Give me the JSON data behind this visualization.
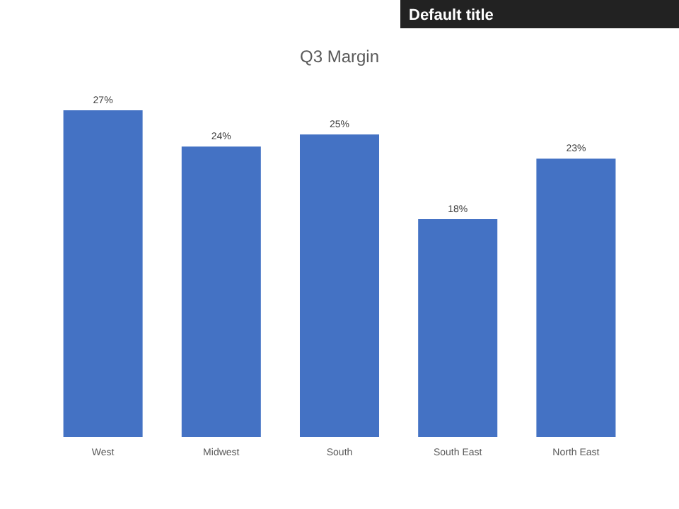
{
  "chart_data": {
    "type": "bar",
    "title": "Q3 Margin",
    "annotations": [
      "Default title"
    ],
    "categories": [
      "West",
      "Midwest",
      "South",
      "South East",
      "North East"
    ],
    "values": [
      27,
      24,
      25,
      18,
      23
    ],
    "value_labels": [
      "27%",
      "24%",
      "25%",
      "18%",
      "23%"
    ],
    "color": "#4472c4"
  }
}
